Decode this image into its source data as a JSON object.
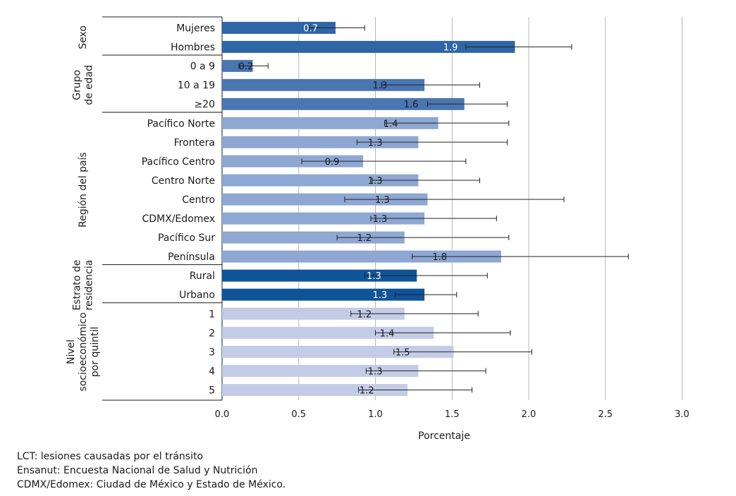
{
  "chart_data": {
    "type": "bar",
    "orientation": "horizontal",
    "xlabel": "Porcentaje",
    "xlim": [
      0,
      3.0
    ],
    "xticks": [
      "0.0",
      "0.5",
      "1.0",
      "1.5",
      "2.0",
      "2.5",
      "3.0"
    ],
    "grid": true,
    "error_bars": true,
    "groups": [
      {
        "name": "Sexo",
        "color": "#2e66a6",
        "label_color": "#ffffff",
        "items": [
          {
            "label": "Mujeres",
            "value": 0.7,
            "bar": 0.74,
            "ci": [
              0.57,
              0.93
            ]
          },
          {
            "label": "Hombres",
            "value": 1.9,
            "bar": 1.91,
            "ci": [
              1.59,
              2.28
            ]
          }
        ]
      },
      {
        "name": "Grupo de edad",
        "color": "#4a76b2",
        "label_color": "#1a1a1a",
        "items": [
          {
            "label": "0 a 9",
            "value": 0.2,
            "bar": 0.2,
            "ci": [
              0.11,
              0.3
            ]
          },
          {
            "label": "10 a 19",
            "value": 1.3,
            "bar": 1.32,
            "ci": [
              1.04,
              1.68
            ]
          },
          {
            "label": "≥20",
            "value": 1.6,
            "bar": 1.58,
            "ci": [
              1.34,
              1.86
            ]
          }
        ]
      },
      {
        "name": "Región del país",
        "color": "#8ea7d3",
        "label_color": "#1a1a1a",
        "items": [
          {
            "label": "Pacífico Norte",
            "value": 1.4,
            "bar": 1.41,
            "ci": [
              1.06,
              1.87
            ]
          },
          {
            "label": "Frontera",
            "value": 1.3,
            "bar": 1.28,
            "ci": [
              0.88,
              1.86
            ]
          },
          {
            "label": "Pacífico Centro",
            "value": 0.9,
            "bar": 0.92,
            "ci": [
              0.52,
              1.59
            ]
          },
          {
            "label": "Centro Norte",
            "value": 1.3,
            "bar": 1.28,
            "ci": [
              0.98,
              1.68
            ]
          },
          {
            "label": "Centro",
            "value": 1.3,
            "bar": 1.34,
            "ci": [
              0.8,
              2.23
            ]
          },
          {
            "label": "CDMX/Edomex",
            "value": 1.3,
            "bar": 1.32,
            "ci": [
              0.97,
              1.79
            ]
          },
          {
            "label": "Pacífico Sur",
            "value": 1.2,
            "bar": 1.19,
            "ci": [
              0.75,
              1.87
            ]
          },
          {
            "label": "Península",
            "value": 1.8,
            "bar": 1.82,
            "ci": [
              1.24,
              2.65
            ]
          }
        ]
      },
      {
        "name": "Estrato de residencia",
        "color": "#0f5497",
        "label_color": "#ffffff",
        "items": [
          {
            "label": "Rural",
            "value": 1.3,
            "bar": 1.27,
            "ci": [
              0.93,
              1.73
            ]
          },
          {
            "label": "Urbano",
            "value": 1.3,
            "bar": 1.32,
            "ci": [
              1.13,
              1.53
            ]
          }
        ]
      },
      {
        "name": "Nivel socioeconómico por quintil",
        "color": "#c3cce6",
        "label_color": "#1a1a1a",
        "items": [
          {
            "label": "1",
            "value": 1.2,
            "bar": 1.19,
            "ci": [
              0.84,
              1.67
            ]
          },
          {
            "label": "2",
            "value": 1.4,
            "bar": 1.38,
            "ci": [
              1.0,
              1.88
            ]
          },
          {
            "label": "3",
            "value": 1.5,
            "bar": 1.51,
            "ci": [
              1.12,
              2.02
            ]
          },
          {
            "label": "4",
            "value": 1.3,
            "bar": 1.28,
            "ci": [
              0.94,
              1.72
            ]
          },
          {
            "label": "5",
            "value": 1.2,
            "bar": 1.21,
            "ci": [
              0.89,
              1.63
            ]
          }
        ]
      }
    ]
  },
  "footnotes": {
    "line1": "LCT: lesiones causadas por el tránsito",
    "line2": "Ensanut: Encuesta Nacional de Salud y Nutrición",
    "line3": "CDMX/Edomex: Ciudad de México y Estado de México."
  }
}
